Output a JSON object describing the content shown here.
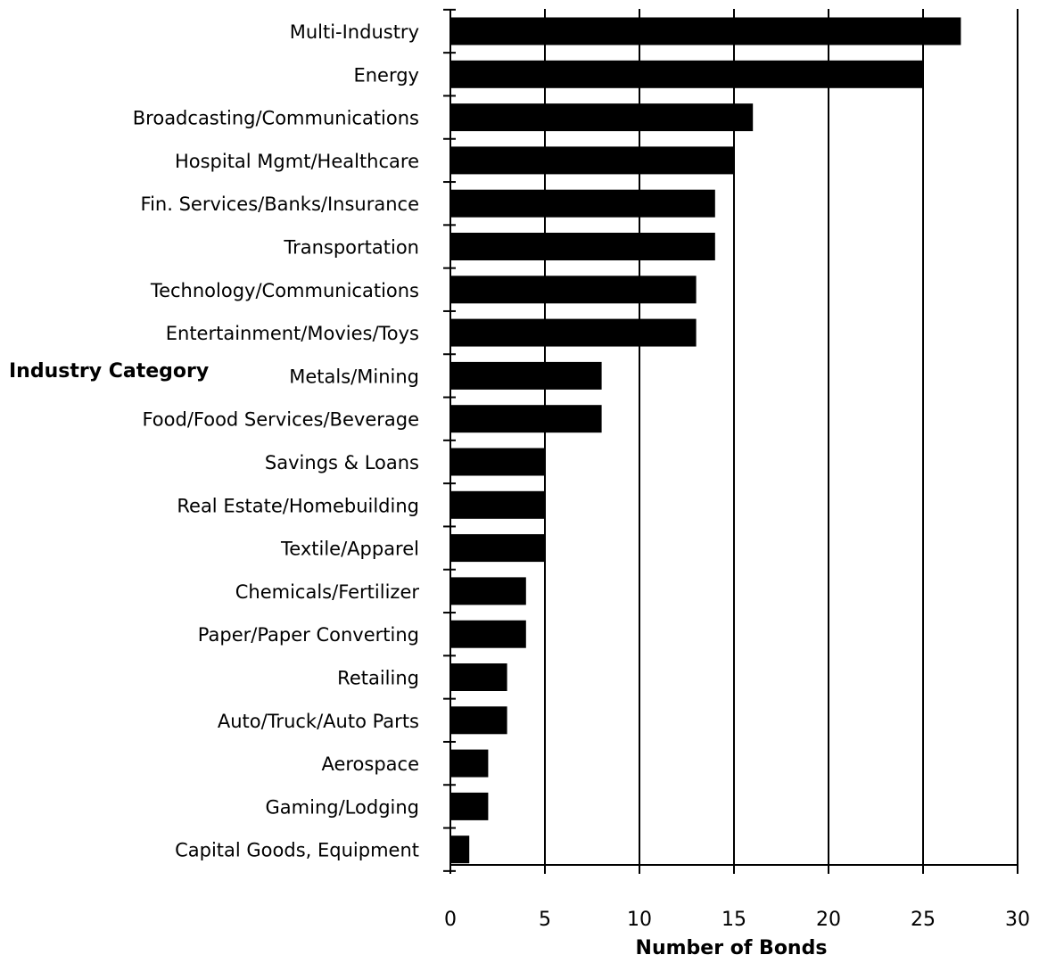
{
  "chart_data": {
    "type": "bar",
    "orientation": "horizontal",
    "categories": [
      "Multi-Industry",
      "Energy",
      "Broadcasting/Communications",
      "Hospital Mgmt/Healthcare",
      "Fin. Services/Banks/Insurance",
      "Transportation",
      "Technology/Communications",
      "Entertainment/Movies/Toys",
      "Metals/Mining",
      "Food/Food Services/Beverage",
      "Savings & Loans",
      "Real Estate/Homebuilding",
      "Textile/Apparel",
      "Chemicals/Fertilizer",
      "Paper/Paper Converting",
      "Retailing",
      "Auto/Truck/Auto Parts",
      "Aerospace",
      "Gaming/Lodging",
      "Capital Goods, Equipment"
    ],
    "values": [
      27,
      25,
      16,
      15,
      14,
      14,
      13,
      13,
      8,
      8,
      5,
      5,
      5,
      4,
      4,
      3,
      3,
      2,
      2,
      1
    ],
    "xlabel": "Number of Bonds",
    "ylabel": "Industry Category",
    "xlim": [
      0,
      30
    ],
    "xticks": [
      "0",
      "5",
      "10",
      "15",
      "20",
      "25",
      "30"
    ],
    "grid": "vertical lines at major ticks",
    "legend": "none",
    "bar_color": "#000000"
  }
}
